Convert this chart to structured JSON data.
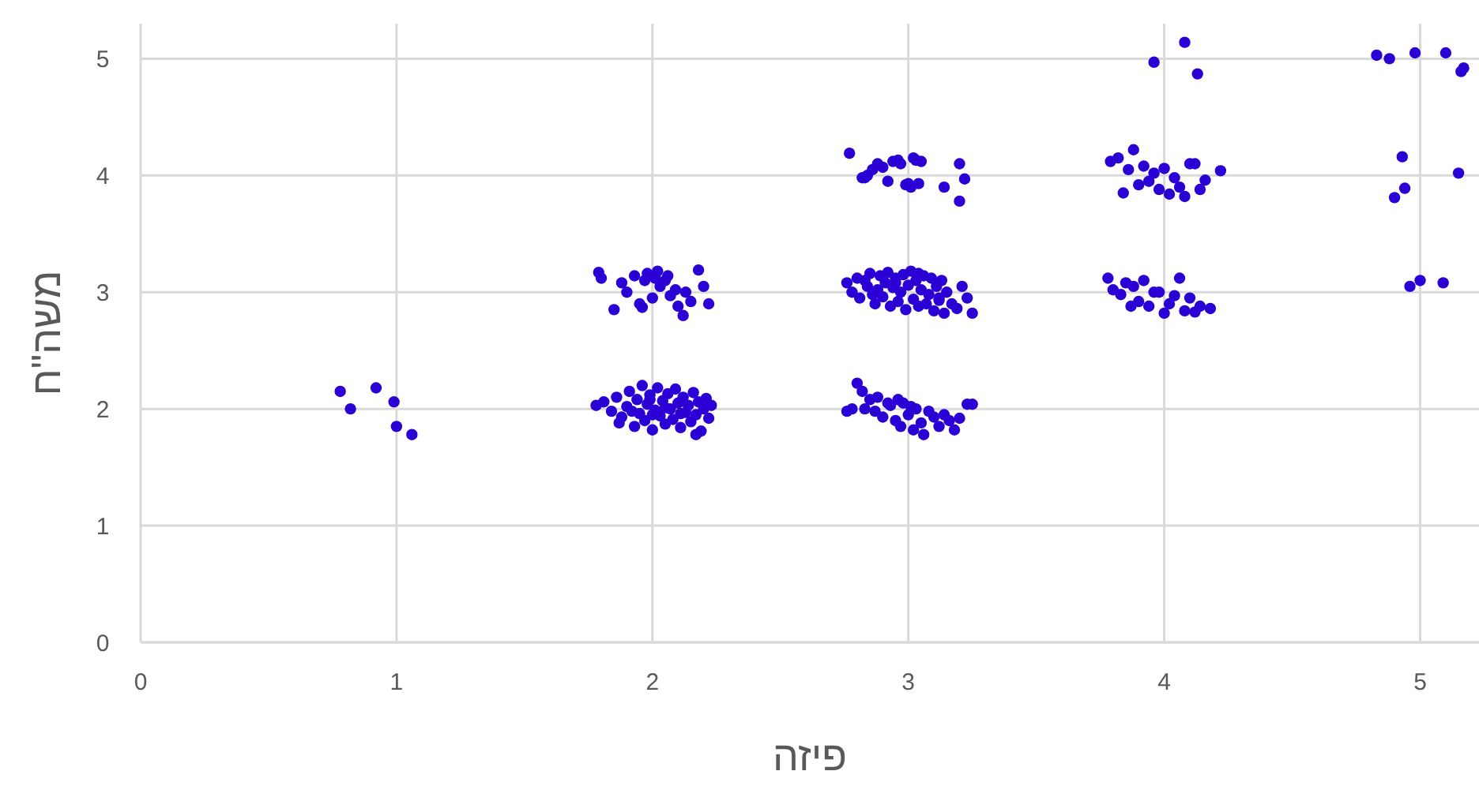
{
  "chart_data": {
    "type": "scatter",
    "xlabel": "פיזה",
    "ylabel": "משה\"ח",
    "xlim": [
      0,
      5.23
    ],
    "ylim": [
      0,
      5.3
    ],
    "xticks": [
      0,
      1,
      2,
      3,
      4,
      5
    ],
    "yticks": [
      0,
      1,
      2,
      3,
      4,
      5
    ],
    "grid": true,
    "marker": "circle",
    "color": "#2b00d4",
    "x": [
      0.78,
      0.92,
      0.82,
      0.99,
      1.0,
      1.06,
      1.78,
      1.81,
      1.84,
      1.86,
      1.88,
      1.9,
      1.91,
      1.93,
      1.94,
      1.95,
      1.96,
      1.97,
      1.98,
      1.99,
      2.0,
      2.01,
      2.02,
      2.03,
      2.04,
      2.05,
      2.06,
      2.07,
      2.08,
      2.09,
      2.1,
      2.11,
      2.12,
      2.13,
      2.14,
      2.15,
      2.16,
      2.17,
      2.18,
      2.19,
      2.2,
      2.21,
      2.22,
      2.23,
      1.92,
      1.99,
      2.05,
      2.11,
      2.17,
      1.87,
      2.0,
      1.79,
      1.8,
      1.85,
      1.88,
      1.9,
      1.93,
      1.95,
      1.97,
      1.98,
      2.0,
      2.01,
      2.02,
      2.03,
      2.05,
      2.06,
      2.07,
      2.09,
      2.1,
      2.12,
      2.13,
      2.15,
      2.18,
      2.2,
      2.22,
      1.96,
      2.77,
      2.82,
      2.84,
      2.86,
      2.88,
      2.9,
      2.92,
      2.94,
      2.96,
      2.97,
      2.99,
      3.0,
      3.01,
      3.03,
      3.05,
      3.04,
      3.14,
      3.2,
      3.22,
      3.2,
      2.83,
      3.02,
      2.76,
      2.78,
      2.8,
      2.81,
      2.83,
      2.84,
      2.85,
      2.87,
      2.88,
      2.89,
      2.9,
      2.91,
      2.92,
      2.93,
      2.94,
      2.95,
      2.96,
      2.97,
      2.98,
      2.99,
      3.0,
      3.01,
      3.02,
      3.03,
      3.04,
      3.05,
      3.06,
      3.07,
      3.08,
      3.09,
      3.1,
      3.11,
      3.12,
      3.13,
      3.14,
      3.15,
      3.17,
      3.19,
      3.21,
      3.23,
      3.25,
      2.86,
      2.95,
      3.04,
      3.12,
      2.76,
      2.78,
      2.8,
      2.82,
      2.83,
      2.85,
      2.87,
      2.88,
      2.9,
      2.92,
      2.93,
      2.95,
      2.96,
      2.97,
      2.98,
      3.0,
      3.01,
      3.02,
      3.03,
      3.05,
      3.06,
      3.08,
      3.1,
      3.12,
      3.14,
      3.16,
      3.18,
      3.2,
      3.23,
      3.25,
      3.79,
      3.82,
      3.84,
      3.86,
      3.88,
      3.9,
      3.92,
      3.94,
      3.96,
      3.98,
      4.0,
      4.02,
      4.04,
      4.06,
      4.08,
      4.1,
      4.12,
      4.14,
      4.16,
      4.22,
      3.78,
      3.8,
      3.83,
      3.85,
      3.87,
      3.88,
      3.9,
      3.92,
      3.94,
      3.96,
      3.98,
      4.0,
      4.02,
      4.04,
      4.06,
      4.08,
      4.1,
      4.12,
      4.14,
      4.18,
      3.96,
      4.08,
      4.13,
      4.83,
      4.88,
      4.98,
      5.1,
      5.16,
      5.17,
      4.93,
      5.15,
      4.94,
      4.9,
      4.96,
      5.0,
      5.09
    ],
    "values": [
      2.15,
      2.18,
      2.0,
      2.06,
      1.85,
      1.78,
      2.03,
      2.06,
      1.98,
      2.1,
      1.93,
      2.02,
      2.15,
      1.85,
      2.08,
      1.96,
      2.2,
      1.9,
      2.04,
      2.12,
      1.82,
      1.99,
      2.18,
      1.94,
      2.07,
      1.87,
      2.13,
      2.0,
      1.91,
      2.17,
      2.05,
      1.84,
      2.1,
      1.97,
      2.03,
      1.89,
      2.14,
      1.95,
      2.06,
      1.81,
      2.0,
      2.09,
      1.92,
      2.03,
      1.98,
      2.08,
      2.01,
      1.96,
      1.78,
      1.88,
      1.95,
      3.17,
      3.12,
      2.85,
      3.08,
      3.0,
      3.14,
      2.9,
      3.1,
      3.16,
      2.95,
      3.12,
      3.18,
      3.05,
      3.1,
      3.14,
      2.97,
      3.02,
      2.88,
      2.8,
      3.0,
      2.92,
      3.19,
      3.05,
      2.9,
      2.87,
      4.19,
      3.98,
      4.0,
      4.05,
      4.1,
      4.07,
      3.95,
      4.12,
      4.13,
      4.1,
      3.92,
      3.93,
      3.9,
      4.13,
      4.12,
      3.93,
      3.9,
      4.1,
      3.97,
      3.78,
      3.98,
      4.15,
      3.08,
      3.0,
      3.12,
      2.95,
      3.1,
      3.05,
      3.16,
      2.9,
      3.02,
      3.14,
      2.96,
      3.08,
      3.17,
      2.88,
      3.04,
      3.12,
      2.92,
      3.0,
      3.15,
      2.85,
      3.06,
      3.18,
      2.94,
      3.1,
      2.88,
      3.02,
      3.14,
      2.9,
      2.98,
      3.12,
      2.84,
      3.05,
      2.95,
      3.1,
      2.82,
      3.0,
      2.9,
      2.86,
      3.05,
      2.95,
      2.82,
      2.98,
      3.08,
      3.16,
      2.93,
      1.98,
      2.0,
      2.22,
      2.15,
      2.0,
      2.08,
      1.98,
      2.1,
      1.93,
      2.05,
      2.03,
      1.9,
      2.08,
      1.85,
      2.05,
      1.95,
      2.02,
      1.82,
      2.0,
      1.88,
      1.78,
      1.98,
      1.93,
      1.85,
      1.95,
      1.9,
      1.82,
      1.92,
      2.04,
      2.04,
      4.12,
      4.15,
      3.85,
      4.05,
      4.22,
      3.92,
      4.08,
      3.95,
      4.02,
      3.88,
      4.06,
      3.84,
      3.98,
      3.9,
      3.82,
      4.1,
      4.1,
      3.88,
      3.96,
      4.04,
      3.12,
      3.02,
      2.98,
      3.08,
      2.88,
      3.05,
      2.92,
      3.1,
      2.88,
      3.0,
      3.0,
      2.82,
      2.9,
      2.97,
      3.12,
      2.84,
      2.95,
      2.83,
      2.88,
      2.86,
      4.97,
      5.14,
      4.87,
      5.03,
      5.0,
      5.05,
      5.05,
      4.89,
      4.92,
      4.16,
      4.02,
      3.89,
      3.81,
      3.05,
      3.1,
      3.08
    ]
  }
}
